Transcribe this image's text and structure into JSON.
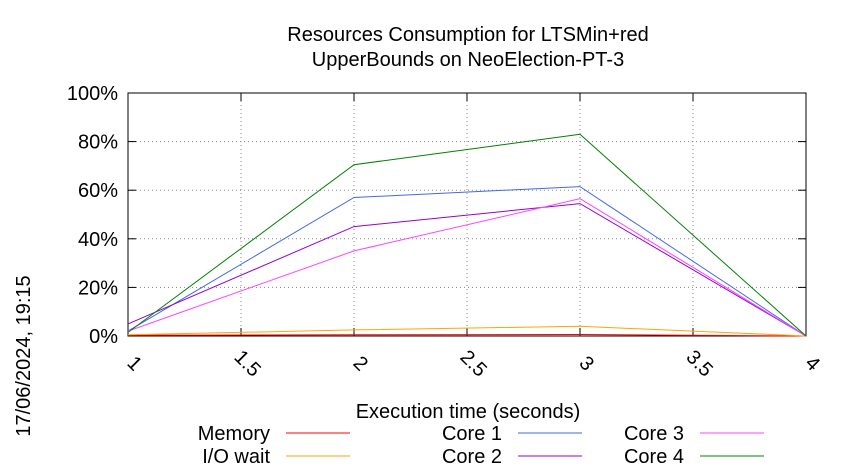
{
  "chart_data": {
    "type": "line",
    "title_line1": "Resources Consumption for LTSMin+red",
    "title_line2": "UpperBounds on NeoElection-PT-3",
    "xlabel": "Execution time (seconds)",
    "ylabel": "",
    "side_label": "17/06/2024, 19:15",
    "xlim": [
      1,
      4
    ],
    "ylim": [
      0,
      100
    ],
    "x_ticks": [
      "1",
      "1.5",
      "2",
      "2.5",
      "3",
      "3.5",
      "4"
    ],
    "y_ticks": [
      "0%",
      "20%",
      "40%",
      "60%",
      "80%",
      "100%"
    ],
    "grid": true,
    "legend_position": "bottom",
    "x": [
      1,
      2,
      3,
      4
    ],
    "series": [
      {
        "name": "Memory",
        "color": "#ff0000",
        "values": [
          0.3,
          0.5,
          0.6,
          0
        ]
      },
      {
        "name": "I/O wait",
        "color": "#ffa500",
        "values": [
          0.5,
          2.5,
          4,
          0
        ]
      },
      {
        "name": "Core 1",
        "color": "#4169e1",
        "values": [
          2,
          57,
          61.5,
          0
        ]
      },
      {
        "name": "Core 2",
        "color": "#9400d3",
        "values": [
          5,
          45,
          54.5,
          0
        ]
      },
      {
        "name": "Core 3",
        "color": "#ff44ff",
        "values": [
          2,
          35,
          56.5,
          0
        ]
      },
      {
        "name": "Core 4",
        "color": "#008000",
        "values": [
          1.5,
          70.5,
          83,
          0
        ]
      }
    ]
  }
}
